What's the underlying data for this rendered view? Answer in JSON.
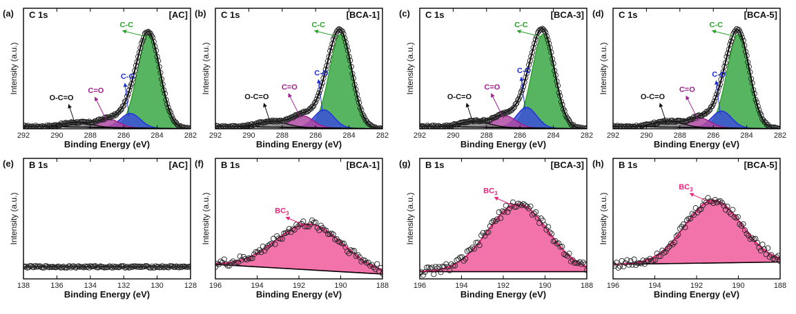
{
  "figure": {
    "colors": {
      "cc": "#2ca02c",
      "cc_fill": "#39a845",
      "co": "#1f2fd6",
      "co_fill": "#3b4fd8",
      "ceo": "#9c1f8c",
      "ceo_fill": "#b04aa3",
      "occo": "#111111",
      "occo_fill": "#808080",
      "bc3": "#e8247a",
      "bc3_fill": "#f05a9a",
      "envelope": "#000000"
    }
  },
  "chart_data": [
    {
      "id": "a",
      "type": "area",
      "panel_label": "(a)",
      "title": "C 1s",
      "sample": "[AC]",
      "xlabel": "Binding Energy (eV)",
      "ylabel": "Intensity (a.u.)",
      "xlim": [
        292,
        282
      ],
      "xticks": [
        292,
        290,
        288,
        286,
        284,
        282
      ],
      "ylim": [
        0,
        1.0
      ],
      "baseline": [
        0.02,
        0.0
      ],
      "peaks": [
        {
          "label": "C-C",
          "center": 284.5,
          "fwhm": 1.6,
          "height": 0.78,
          "color_key": "cc"
        },
        {
          "label": "C-O",
          "center": 285.6,
          "fwhm": 1.4,
          "height": 0.12,
          "color_key": "co"
        },
        {
          "label": "C=O",
          "center": 286.9,
          "fwhm": 1.5,
          "height": 0.07,
          "color_key": "ceo"
        },
        {
          "label": "O-C=O",
          "center": 288.8,
          "fwhm": 2.0,
          "height": 0.04,
          "color_key": "occo"
        }
      ]
    },
    {
      "id": "b",
      "type": "area",
      "panel_label": "(b)",
      "title": "C 1s",
      "sample": "[BCA-1]",
      "xlabel": "Binding Energy (eV)",
      "ylabel": "Intensity (a.u.)",
      "xlim": [
        292,
        282
      ],
      "xticks": [
        292,
        290,
        288,
        286,
        284,
        282
      ],
      "ylim": [
        0,
        1.0
      ],
      "baseline": [
        0.02,
        0.0
      ],
      "peaks": [
        {
          "label": "C-C",
          "center": 284.5,
          "fwhm": 1.6,
          "height": 0.78,
          "color_key": "cc"
        },
        {
          "label": "C-O",
          "center": 285.5,
          "fwhm": 1.4,
          "height": 0.15,
          "color_key": "co"
        },
        {
          "label": "C=O",
          "center": 286.8,
          "fwhm": 1.5,
          "height": 0.1,
          "color_key": "ceo"
        },
        {
          "label": "O-C=O",
          "center": 288.6,
          "fwhm": 2.0,
          "height": 0.05,
          "color_key": "occo"
        }
      ]
    },
    {
      "id": "c",
      "type": "area",
      "panel_label": "(c)",
      "title": "C 1s",
      "sample": "[BCA-3]",
      "xlabel": "Binding Energy (eV)",
      "ylabel": "Intensity (a.u.)",
      "xlim": [
        292,
        282
      ],
      "xticks": [
        292,
        290,
        288,
        286,
        284,
        282
      ],
      "ylim": [
        0,
        1.0
      ],
      "baseline": [
        0.02,
        0.0
      ],
      "peaks": [
        {
          "label": "C-C",
          "center": 284.6,
          "fwhm": 1.6,
          "height": 0.78,
          "color_key": "cc"
        },
        {
          "label": "C-O",
          "center": 285.6,
          "fwhm": 1.4,
          "height": 0.17,
          "color_key": "co"
        },
        {
          "label": "C=O",
          "center": 286.9,
          "fwhm": 1.5,
          "height": 0.1,
          "color_key": "ceo"
        },
        {
          "label": "O-C=O",
          "center": 288.7,
          "fwhm": 2.0,
          "height": 0.05,
          "color_key": "occo"
        }
      ]
    },
    {
      "id": "d",
      "type": "area",
      "panel_label": "(d)",
      "title": "C 1s",
      "sample": "[BCA-5]",
      "xlabel": "Binding Energy (eV)",
      "ylabel": "Intensity (a.u.)",
      "xlim": [
        292,
        282
      ],
      "xticks": [
        292,
        290,
        288,
        286,
        284,
        282
      ],
      "ylim": [
        0,
        1.0
      ],
      "baseline": [
        0.02,
        0.0
      ],
      "peaks": [
        {
          "label": "C-C",
          "center": 284.5,
          "fwhm": 1.6,
          "height": 0.78,
          "color_key": "cc"
        },
        {
          "label": "C-O",
          "center": 285.5,
          "fwhm": 1.4,
          "height": 0.14,
          "color_key": "co"
        },
        {
          "label": "C=O",
          "center": 286.8,
          "fwhm": 1.5,
          "height": 0.08,
          "color_key": "ceo"
        },
        {
          "label": "O-C=O",
          "center": 288.7,
          "fwhm": 2.0,
          "height": 0.05,
          "color_key": "occo"
        }
      ]
    },
    {
      "id": "e",
      "type": "scatter",
      "panel_label": "(e)",
      "title": "B 1s",
      "sample": "[AC]",
      "xlabel": "Binding Energy (eV)",
      "ylabel": "Intensity (a.u.)",
      "xlim": [
        138,
        128
      ],
      "xticks": [
        138,
        136,
        134,
        132,
        130,
        128
      ],
      "ylim": [
        0,
        1.0
      ],
      "baseline": [
        0.1,
        0.1
      ],
      "peaks": []
    },
    {
      "id": "f",
      "type": "area",
      "panel_label": "(f)",
      "title": "B 1s",
      "sample": "[BCA-1]",
      "xlabel": "Binding Energy (eV)",
      "ylabel": "Intensity (a.u.)",
      "xlim": [
        196,
        188
      ],
      "xticks": [
        196,
        194,
        192,
        190,
        188
      ],
      "ylim": [
        0,
        1.0
      ],
      "baseline": [
        0.12,
        0.04
      ],
      "peaks": [
        {
          "label": "BC3",
          "center": 191.5,
          "fwhm": 3.8,
          "height": 0.38,
          "color_key": "bc3"
        }
      ]
    },
    {
      "id": "g",
      "type": "area",
      "panel_label": "(g)",
      "title": "B 1s",
      "sample": "[BCA-3]",
      "xlabel": "Binding Energy (eV)",
      "ylabel": "Intensity (a.u.)",
      "xlim": [
        196,
        188
      ],
      "xticks": [
        196,
        194,
        192,
        190,
        188
      ],
      "ylim": [
        0,
        1.0
      ],
      "baseline": [
        0.06,
        0.06
      ],
      "peaks": [
        {
          "label": "BC3",
          "center": 191.3,
          "fwhm": 3.4,
          "height": 0.56,
          "color_key": "bc3"
        }
      ]
    },
    {
      "id": "h",
      "type": "area",
      "panel_label": "(h)",
      "title": "B 1s",
      "sample": "[BCA-5]",
      "xlabel": "Binding Energy (eV)",
      "ylabel": "Intensity (a.u.)",
      "xlim": [
        196,
        188
      ],
      "xticks": [
        196,
        194,
        192,
        190,
        188
      ],
      "ylim": [
        0,
        1.0
      ],
      "baseline": [
        0.12,
        0.14
      ],
      "peaks": [
        {
          "label": "BC3",
          "center": 191.2,
          "fwhm": 3.2,
          "height": 0.52,
          "color_key": "bc3"
        }
      ]
    }
  ]
}
